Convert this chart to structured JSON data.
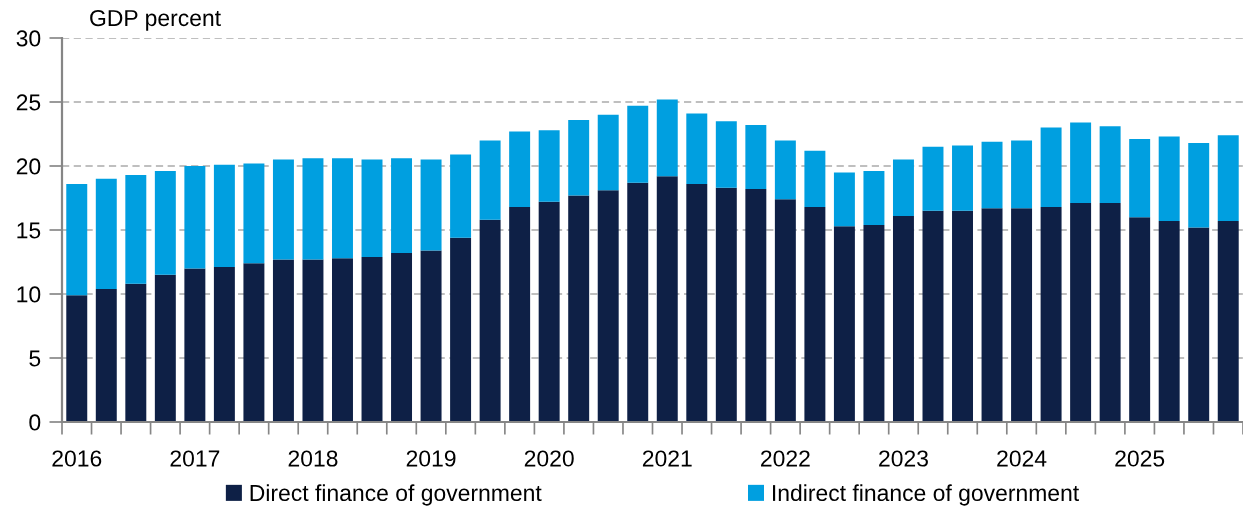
{
  "chart_data": {
    "type": "bar",
    "stacked": true,
    "ylabel": "GDP percent",
    "categories": [
      "2016",
      null,
      null,
      null,
      "2017",
      null,
      null,
      null,
      "2018",
      null,
      null,
      null,
      "2019",
      null,
      null,
      null,
      "2020",
      null,
      null,
      null,
      "2021",
      null,
      null,
      null,
      "2022",
      null,
      null,
      null,
      "2023",
      null,
      null,
      null,
      "2024",
      null,
      null,
      null,
      "2025",
      null,
      null,
      null
    ],
    "series": [
      {
        "name": "Direct finance of government",
        "color": "#0e2046",
        "values": [
          9.9,
          10.4,
          10.8,
          11.5,
          12.0,
          12.1,
          12.4,
          12.7,
          12.7,
          12.8,
          12.9,
          13.2,
          13.4,
          14.4,
          15.8,
          16.8,
          17.2,
          17.7,
          18.1,
          18.7,
          19.2,
          18.6,
          18.3,
          18.2,
          17.4,
          16.8,
          15.3,
          15.4,
          16.1,
          16.5,
          16.5,
          16.7,
          16.7,
          16.8,
          17.1,
          17.1,
          16.0,
          15.7,
          15.2,
          15.7
        ]
      },
      {
        "name": "Indirect finance of government",
        "color": "#009fe0",
        "values": [
          8.7,
          8.6,
          8.5,
          8.1,
          8.0,
          8.0,
          7.8,
          7.8,
          7.9,
          7.8,
          7.6,
          7.4,
          7.1,
          6.5,
          6.2,
          5.9,
          5.6,
          5.9,
          5.9,
          6.0,
          6.0,
          5.5,
          5.2,
          5.0,
          4.6,
          4.4,
          4.2,
          4.2,
          4.4,
          5.0,
          5.1,
          5.2,
          5.3,
          6.2,
          6.3,
          6.0,
          6.1,
          6.6,
          6.6,
          6.7
        ]
      }
    ],
    "ylim": [
      0,
      30
    ],
    "yticks": [
      0,
      5,
      10,
      15,
      20,
      25,
      30
    ],
    "grid": "y",
    "legend": "bottom"
  }
}
